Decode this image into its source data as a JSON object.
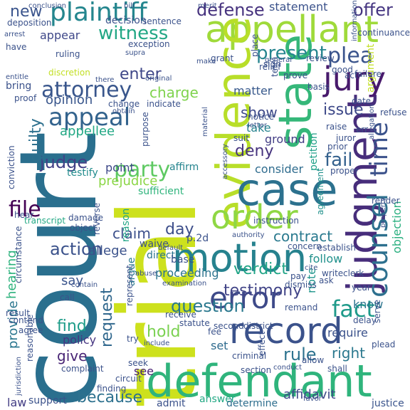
{
  "words": [
    {
      "text": "court",
      "color": "#2a6f8e"
    },
    {
      "text": "trial",
      "color": "#cde11d"
    },
    {
      "text": "defendant",
      "color": "#2fb47c"
    },
    {
      "text": "appellant",
      "color": "#9fda3a"
    },
    {
      "text": "evidence",
      "color": "#b8de29"
    },
    {
      "text": "judgment",
      "color": "#472d7b"
    },
    {
      "text": "case",
      "color": "#2c718e"
    },
    {
      "text": "motion",
      "color": "#26828e"
    },
    {
      "text": "state",
      "color": "#35b779"
    },
    {
      "text": "jury",
      "color": "#481a6c"
    },
    {
      "text": "record",
      "color": "#3b528b"
    },
    {
      "text": "order",
      "color": "#8fd744"
    },
    {
      "text": "error",
      "color": "#3e4a89"
    },
    {
      "text": "counsel",
      "color": "#2d708e"
    },
    {
      "text": "plaintiff",
      "color": "#24868e"
    },
    {
      "text": "time",
      "color": "#3b528b"
    },
    {
      "text": "fact",
      "color": "#1f9a8a"
    },
    {
      "text": "appeal",
      "color": "#33638d"
    },
    {
      "text": "attorney",
      "color": "#39568c"
    },
    {
      "text": "party",
      "color": "#5ec962"
    },
    {
      "text": "plea",
      "color": "#3a548c"
    },
    {
      "text": "file",
      "color": "#440154"
    },
    {
      "text": "present",
      "color": "#25848e"
    },
    {
      "text": "witness",
      "color": "#22a785"
    },
    {
      "text": "testimony",
      "color": "#414487"
    },
    {
      "text": "question",
      "color": "#2a788e"
    },
    {
      "text": "rule",
      "color": "#2c728e"
    },
    {
      "text": "verdict",
      "color": "#20a486"
    },
    {
      "text": "judge",
      "color": "#424086"
    },
    {
      "text": "deny",
      "color": "#46337e"
    },
    {
      "text": "issue",
      "color": "#3e4989"
    },
    {
      "text": "fail",
      "color": "#34618d"
    },
    {
      "text": "contract",
      "color": "#29798e"
    },
    {
      "text": "find",
      "color": "#1e9c89"
    },
    {
      "text": "hold",
      "color": "#7ad151"
    },
    {
      "text": "because",
      "color": "#2d718e"
    },
    {
      "text": "action",
      "color": "#3b528b"
    },
    {
      "text": "defense",
      "color": "#46327e"
    },
    {
      "text": "enter",
      "color": "#3f4788"
    },
    {
      "text": "show",
      "color": "#3e4a89"
    },
    {
      "text": "charge",
      "color": "#7fd34e"
    },
    {
      "text": "guilty",
      "color": "#2d708e"
    },
    {
      "text": "request",
      "color": "#31688e"
    },
    {
      "text": "right",
      "color": "#2a788e"
    },
    {
      "text": "claim",
      "color": "#3c508b"
    },
    {
      "text": "day",
      "color": "#3d4e8a"
    },
    {
      "text": "hearing",
      "color": "#2db27d"
    },
    {
      "text": "objection",
      "color": "#29af7f"
    },
    {
      "text": "offer",
      "color": "#453581"
    },
    {
      "text": "new",
      "color": "#3a548c"
    },
    {
      "text": "provide",
      "color": "#2a768e"
    },
    {
      "text": "say",
      "color": "#3a548c"
    },
    {
      "text": "give",
      "color": "#482475"
    },
    {
      "text": "appellee",
      "color": "#22a884"
    },
    {
      "text": "opinion",
      "color": "#39568c"
    },
    {
      "text": "prejudice",
      "color": "#8bd646"
    },
    {
      "text": "consider",
      "color": "#2f6c8e"
    },
    {
      "text": "affidavit",
      "color": "#3e4a89"
    },
    {
      "text": "statement",
      "color": "#3b528b"
    },
    {
      "text": "appear",
      "color": "#3f4889"
    },
    {
      "text": "allege",
      "color": "#3b528b"
    },
    {
      "text": "testify",
      "color": "#228c8d"
    },
    {
      "text": "ground",
      "color": "#433e85"
    },
    {
      "text": "petition",
      "color": "#1fa088"
    },
    {
      "text": "argument",
      "color": "#c2df23"
    },
    {
      "text": "proceeding",
      "color": "#2c738e"
    },
    {
      "text": "require",
      "color": "#3b528b"
    },
    {
      "text": "matter",
      "color": "#38598c"
    },
    {
      "text": "take",
      "color": "#26828e"
    },
    {
      "text": "note",
      "color": "#1f958b"
    },
    {
      "text": "follow",
      "color": "#21918c"
    },
    {
      "text": "know",
      "color": "#2b748e"
    },
    {
      "text": "set",
      "color": "#2f6b8e"
    },
    {
      "text": "see",
      "color": "#482173"
    },
    {
      "text": "point",
      "color": "#3e4989"
    },
    {
      "text": "affirm",
      "color": "#25848e"
    },
    {
      "text": "sufficient",
      "color": "#2fb47c"
    },
    {
      "text": "reason",
      "color": "#20a486"
    },
    {
      "text": "direct",
      "color": "#2b758e"
    },
    {
      "text": "argue",
      "color": "#29798e"
    },
    {
      "text": "base",
      "color": "#3b528b"
    },
    {
      "text": "policy",
      "color": "#453581"
    },
    {
      "text": "support",
      "color": "#3b528b"
    },
    {
      "text": "admit",
      "color": "#3b528b"
    },
    {
      "text": "answer",
      "color": "#22a884"
    },
    {
      "text": "determine",
      "color": "#2e6e8e"
    },
    {
      "text": "justice",
      "color": "#3a548c"
    },
    {
      "text": "law",
      "color": "#433d84"
    },
    {
      "text": "complaint",
      "color": "#3b528b"
    },
    {
      "text": "finding",
      "color": "#3b528b"
    },
    {
      "text": "decision",
      "color": "#3b528b"
    },
    {
      "text": "sentence",
      "color": "#3b528b"
    },
    {
      "text": "exception",
      "color": "#3b528b"
    },
    {
      "text": "ruling",
      "color": "#3b528b"
    },
    {
      "text": "deposition",
      "color": "#3b528b"
    },
    {
      "text": "conclusion",
      "color": "#3b528b"
    },
    {
      "text": "bill",
      "color": "#3b528b"
    },
    {
      "text": "supra",
      "color": "#3b528b"
    },
    {
      "text": "discretion",
      "color": "#c2df23"
    },
    {
      "text": "transcript",
      "color": "#22a884"
    },
    {
      "text": "continuance",
      "color": "#3b528b"
    },
    {
      "text": "term",
      "color": "#3b528b"
    },
    {
      "text": "grant",
      "color": "#3b528b"
    },
    {
      "text": "relief",
      "color": "#3b528b"
    },
    {
      "text": "review",
      "color": "#3b528b"
    },
    {
      "text": "good",
      "color": "#3b528b"
    },
    {
      "text": "act",
      "color": "#3b528b"
    },
    {
      "text": "failure",
      "color": "#3b528b"
    },
    {
      "text": "prove",
      "color": "#3b528b"
    },
    {
      "text": "basis",
      "color": "#3b528b"
    },
    {
      "text": "date",
      "color": "#3b528b"
    },
    {
      "text": "refuse",
      "color": "#3b528b"
    },
    {
      "text": "raise",
      "color": "#3b528b"
    },
    {
      "text": "juror",
      "color": "#3b528b"
    },
    {
      "text": "err",
      "color": "#3b528b"
    },
    {
      "text": "prior",
      "color": "#3b528b"
    },
    {
      "text": "proper",
      "color": "#3b528b"
    },
    {
      "text": "render",
      "color": "#3b528b"
    },
    {
      "text": "agreement",
      "color": "#21918c"
    },
    {
      "text": "concern",
      "color": "#3b528b"
    },
    {
      "text": "establish",
      "color": "#3b528b"
    },
    {
      "text": "instruction",
      "color": "#3b528b"
    },
    {
      "text": "p.2d",
      "color": "#3b528b"
    },
    {
      "text": "waive",
      "color": "#3b528b"
    },
    {
      "text": "reverse",
      "color": "#3b528b"
    },
    {
      "text": "damage",
      "color": "#3b528b"
    },
    {
      "text": "object",
      "color": "#3b528b"
    },
    {
      "text": "conviction",
      "color": "#3b528b"
    },
    {
      "text": "hear",
      "color": "#3b528b"
    },
    {
      "text": "circumstance",
      "color": "#3b528b"
    },
    {
      "text": "result",
      "color": "#3b528b"
    },
    {
      "text": "contend",
      "color": "#3b528b"
    },
    {
      "text": "agree",
      "color": "#3b528b"
    },
    {
      "text": "reasonable",
      "color": "#3b528b"
    },
    {
      "text": "jurisdiction",
      "color": "#3b528b"
    },
    {
      "text": "call",
      "color": "#3b528b"
    },
    {
      "text": "contain",
      "color": "#3b528b"
    },
    {
      "text": "represent",
      "color": "#3b528b"
    },
    {
      "text": "abuse",
      "color": "#3b528b"
    },
    {
      "text": "examination",
      "color": "#3b528b"
    },
    {
      "text": "receive",
      "color": "#3b528b"
    },
    {
      "text": "statute",
      "color": "#3b528b"
    },
    {
      "text": "second",
      "color": "#3b528b"
    },
    {
      "text": "district",
      "color": "#3b528b"
    },
    {
      "text": "remand",
      "color": "#3b528b"
    },
    {
      "text": "dismiss",
      "color": "#3b528b"
    },
    {
      "text": "pay",
      "color": "#3b528b"
    },
    {
      "text": "cite",
      "color": "#3b528b"
    },
    {
      "text": "ask",
      "color": "#3b528b"
    },
    {
      "text": "write",
      "color": "#3b528b"
    },
    {
      "text": "clerk",
      "color": "#3b528b"
    },
    {
      "text": "year",
      "color": "#3b528b"
    },
    {
      "text": "serve",
      "color": "#3b528b"
    },
    {
      "text": "delay",
      "color": "#3b528b"
    },
    {
      "text": "plead",
      "color": "#3b528b"
    },
    {
      "text": "fee",
      "color": "#3b528b"
    },
    {
      "text": "criminal",
      "color": "#3b528b"
    },
    {
      "text": "effect",
      "color": "#3b528b"
    },
    {
      "text": "allow",
      "color": "#3b528b"
    },
    {
      "text": "shall",
      "color": "#3b528b"
    },
    {
      "text": "conduct",
      "color": "#3b528b"
    },
    {
      "text": "section",
      "color": "#3b528b"
    },
    {
      "text": "seek",
      "color": "#3b528b"
    },
    {
      "text": "circuit",
      "color": "#3b528b"
    },
    {
      "text": "include",
      "color": "#3b528b"
    },
    {
      "text": "try",
      "color": "#3b528b"
    },
    {
      "text": "indicate",
      "color": "#3b528b"
    },
    {
      "text": "change",
      "color": "#3b528b"
    },
    {
      "text": "obtain",
      "color": "#3b528b"
    },
    {
      "text": "purpose",
      "color": "#3b528b"
    },
    {
      "text": "accessory",
      "color": "#3b528b"
    },
    {
      "text": "authority",
      "color": "#3b528b"
    },
    {
      "text": "original",
      "color": "#3b528b"
    },
    {
      "text": "make",
      "color": "#3b528b"
    },
    {
      "text": "place",
      "color": "#3b528b"
    },
    {
      "text": "material",
      "color": "#3b528b"
    },
    {
      "text": "suit",
      "color": "#3b528b"
    },
    {
      "text": "notice",
      "color": "#3b528b"
    },
    {
      "text": "letter",
      "color": "#3b528b"
    },
    {
      "text": "sign",
      "color": "#3b528b"
    },
    {
      "text": "have",
      "color": "#3b528b"
    },
    {
      "text": "arrest",
      "color": "#3b528b"
    },
    {
      "text": "entitle",
      "color": "#3b528b"
    },
    {
      "text": "bring",
      "color": "#3b528b"
    },
    {
      "text": "proof",
      "color": "#3b528b"
    },
    {
      "text": "there",
      "color": "#3b528b"
    },
    {
      "text": "general",
      "color": "#3b528b"
    },
    {
      "text": "information",
      "color": "#3b528b"
    },
    {
      "text": "allegation",
      "color": "#3b528b"
    },
    {
      "text": "property",
      "color": "#3b528b"
    },
    {
      "text": "merit",
      "color": "#3b528b"
    },
    {
      "text": "default",
      "color": "#3b528b"
    },
    {
      "text": "favor",
      "color": "#3b528b"
    }
  ]
}
